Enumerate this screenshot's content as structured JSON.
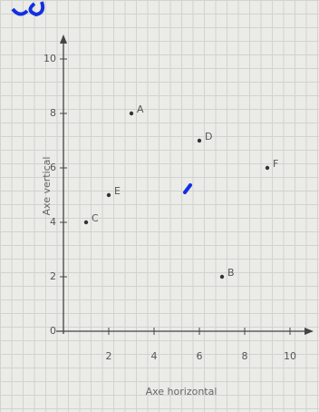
{
  "chart_data": {
    "type": "scatter",
    "xlabel": "Axe horizontal",
    "ylabel": "Axe vertical",
    "x": [
      3,
      7,
      1,
      6,
      2,
      9
    ],
    "values": [
      8,
      2,
      4,
      7,
      5,
      6
    ],
    "point_labels": [
      "A",
      "B",
      "C",
      "D",
      "E",
      "F"
    ],
    "color": "#333",
    "xlim": [
      0,
      10.5
    ],
    "ylim": [
      0,
      10.5
    ],
    "xticks": [
      2,
      4,
      6,
      8,
      10
    ],
    "yticks": [
      0,
      2,
      4,
      6,
      8,
      10
    ]
  }
}
